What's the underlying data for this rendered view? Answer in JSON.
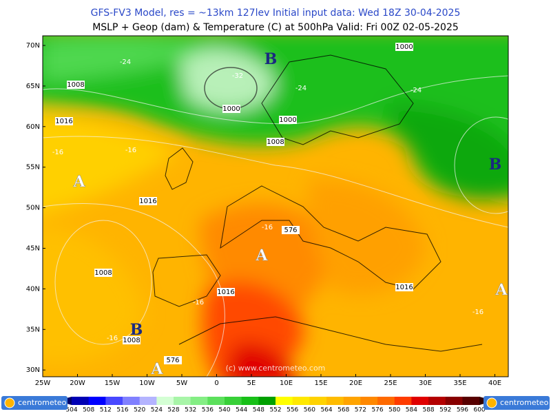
{
  "header": {
    "title": "GFS-FV3 Model, res = ~13km 127lev   Initial input data: Wed 18Z 30-04-2025",
    "subtitle": "MSLP + Geop (dam) & Temperature (C) at 500hPa  Valid: Fri 00Z 02-05-2025"
  },
  "axes": {
    "lat": [
      "70N",
      "65N",
      "60N",
      "55N",
      "50N",
      "45N",
      "40N",
      "35N",
      "30N"
    ],
    "lon": [
      "25W",
      "20W",
      "15W",
      "10W",
      "5W",
      "0",
      "5E",
      "10E",
      "15E",
      "20E",
      "25E",
      "30E",
      "35E",
      "40E"
    ]
  },
  "map": {
    "centers": [
      "B",
      "B",
      "B",
      "A",
      "A",
      "A",
      "A"
    ],
    "isobars": [
      "1008",
      "1016",
      "1000",
      "1000",
      "1008",
      "1000",
      "1016",
      "1008",
      "1016",
      "1016",
      "1008",
      "576",
      "576"
    ],
    "temperatures": [
      "-24",
      "-32",
      "-24",
      "-24",
      "-16",
      "-16",
      "-16",
      "-16",
      "-16",
      "-16"
    ],
    "watermark": "(c) www.centrometeo.com"
  },
  "colorbar": {
    "labels": [
      "504",
      "508",
      "512",
      "516",
      "520",
      "524",
      "528",
      "532",
      "536",
      "540",
      "544",
      "548",
      "552",
      "556",
      "560",
      "564",
      "568",
      "572",
      "576",
      "580",
      "584",
      "588",
      "592",
      "596",
      "600"
    ],
    "colors": [
      "#0000b4",
      "#0000ff",
      "#4848ff",
      "#8080ff",
      "#b4b4ff",
      "#d4ffd4",
      "#a8f5a8",
      "#84ee84",
      "#5ce05c",
      "#38d038",
      "#18c018",
      "#00a000",
      "#ffff00",
      "#ffe800",
      "#ffd200",
      "#ffbc00",
      "#ffa400",
      "#ff8800",
      "#ff6a00",
      "#ff3c00",
      "#e00000",
      "#b40000",
      "#880000",
      "#580000"
    ]
  },
  "logos": {
    "left": "centrometeo",
    "right": "centrometeo"
  }
}
